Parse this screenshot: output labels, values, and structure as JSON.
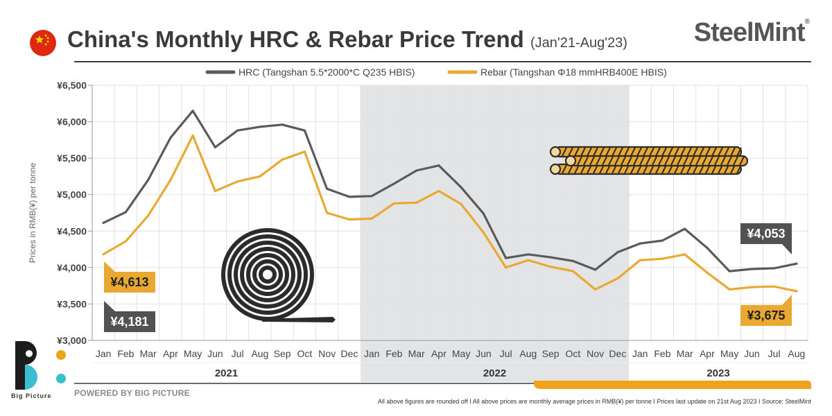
{
  "header": {
    "title": "China's Monthly HRC & Rebar Price Trend",
    "subtitle": "(Jan'21-Aug'23)",
    "brand": "SteelMint",
    "brand_mark": "®"
  },
  "footer": {
    "powered_by": "POWERED BY BIG PICTURE",
    "logo_text": "Big Picture",
    "footnote": "All above figures are rounded off  I  All above prices are monthly average prices in RMB(¥) per tonne  I  Prices last update on 21st Aug 2023  I  Source: SteelMint"
  },
  "colors": {
    "hrc": "#5a5a5a",
    "rebar": "#e9a931",
    "shade": "#e3e4e6",
    "flag_red": "#de2910",
    "flag_star": "#ffde00",
    "logo_orange": "#f0a21c",
    "logo_teal": "#38bfd0"
  },
  "chart_data": {
    "type": "line",
    "ylabel": "Prices in RMB(¥) per tonne",
    "ylim": [
      3000,
      6500
    ],
    "yticks": [
      3000,
      3500,
      4000,
      4500,
      5000,
      5500,
      6000,
      6500
    ],
    "ytick_labels": [
      "¥3,000",
      "¥3,500",
      "¥4,000",
      "¥4,500",
      "¥5,000",
      "¥5,500",
      "¥6,000",
      "¥6,500"
    ],
    "grid": true,
    "legend_position": "top",
    "categories": [
      "Jan",
      "Feb",
      "Mar",
      "Apr",
      "May",
      "Jun",
      "Jul",
      "Aug",
      "Sep",
      "Oct",
      "Nov",
      "Dec",
      "Jan",
      "Feb",
      "Mar",
      "Apr",
      "May",
      "Jun",
      "Jul",
      "Aug",
      "Sep",
      "Oct",
      "Nov",
      "Dec",
      "Jan",
      "Feb",
      "Mar",
      "Apr",
      "May",
      "Jun",
      "Jul",
      "Aug"
    ],
    "years": [
      {
        "label": "2021",
        "start": 0,
        "end": 11
      },
      {
        "label": "2022",
        "start": 12,
        "end": 23
      },
      {
        "label": "2023",
        "start": 24,
        "end": 31
      }
    ],
    "shaded_year": "2022",
    "series": [
      {
        "name": "HRC (Tangshan 5.5*2000*C Q235 HBIS)",
        "values": [
          4613,
          4760,
          5200,
          5780,
          6150,
          5650,
          5880,
          5930,
          5960,
          5880,
          5080,
          4970,
          4980,
          5150,
          5330,
          5400,
          5100,
          4740,
          4130,
          4180,
          4140,
          4090,
          3970,
          4210,
          4330,
          4370,
          4530,
          4270,
          3950,
          3980,
          3990,
          4053
        ]
      },
      {
        "name": "Rebar (Tangshan Φ18 mmHRB400E HBIS)",
        "values": [
          4181,
          4360,
          4710,
          5200,
          5810,
          5050,
          5180,
          5250,
          5480,
          5590,
          4750,
          4660,
          4670,
          4880,
          4890,
          5050,
          4870,
          4480,
          4000,
          4100,
          4010,
          3950,
          3700,
          3850,
          4100,
          4120,
          4180,
          3930,
          3700,
          3730,
          3740,
          3675
        ]
      }
    ],
    "callouts": [
      {
        "text": "¥4,613",
        "series": "HRC",
        "point": "Jan 2021"
      },
      {
        "text": "¥4,181",
        "series": "Rebar",
        "point": "Jan 2021"
      },
      {
        "text": "¥4,053",
        "series": "HRC",
        "point": "Aug 2023"
      },
      {
        "text": "¥3,675",
        "series": "Rebar",
        "point": "Aug 2023"
      }
    ]
  }
}
